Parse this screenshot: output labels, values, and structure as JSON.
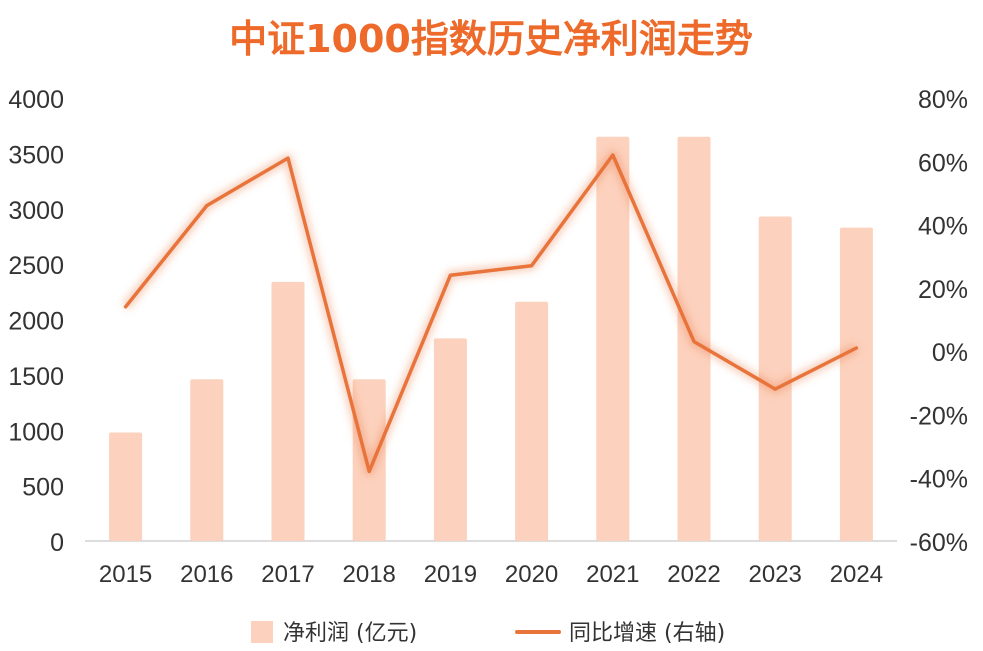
{
  "chart_data": {
    "type": "bar",
    "title": "中证1000指数历史净利润走势",
    "categories": [
      "2015",
      "2016",
      "2017",
      "2018",
      "2019",
      "2020",
      "2021",
      "2022",
      "2023",
      "2024"
    ],
    "series": [
      {
        "name": "净利润 (亿元)",
        "type": "bar",
        "axis": "left",
        "values": [
          980,
          1460,
          2340,
          1460,
          1830,
          2160,
          3650,
          3650,
          2930,
          2830
        ]
      },
      {
        "name": "同比增速 (右轴)",
        "type": "line",
        "axis": "right",
        "values": [
          14,
          46,
          61,
          -38,
          24,
          27,
          62,
          3,
          -12,
          1
        ]
      }
    ],
    "y_left": {
      "lim": [
        0,
        4000
      ],
      "ticks": [
        "0",
        "500",
        "1000",
        "1500",
        "2000",
        "2500",
        "3000",
        "3500",
        "4000"
      ]
    },
    "y_right": {
      "lim": [
        -60,
        80
      ],
      "ticks": [
        "-60%",
        "-40%",
        "-20%",
        "0%",
        "20%",
        "40%",
        "60%",
        "80%"
      ]
    },
    "grid": false,
    "legend_position": "bottom",
    "colors": {
      "bar": "#fcd1bd",
      "line": "#e8743b",
      "title": "#ee6a2a"
    }
  }
}
